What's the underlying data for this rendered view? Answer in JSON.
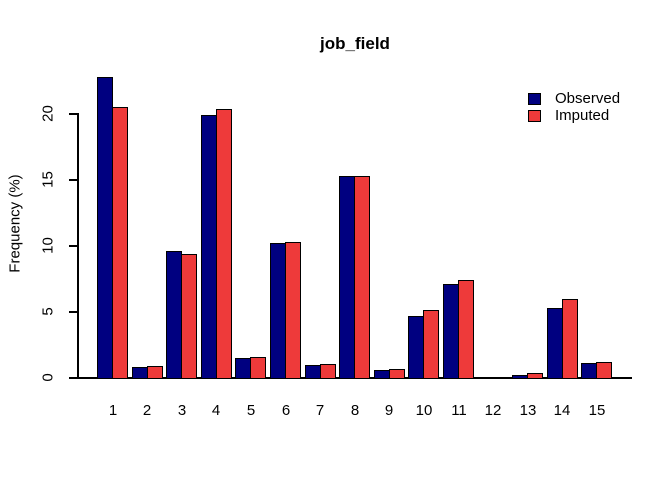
{
  "title": "job_field",
  "y_axis": {
    "label": "Frequency (%)",
    "tick_labels": [
      "0",
      "5",
      "10",
      "15",
      "20"
    ]
  },
  "x_axis": {
    "tick_labels": [
      "1",
      "2",
      "3",
      "4",
      "5",
      "6",
      "7",
      "8",
      "9",
      "10",
      "11",
      "12",
      "13",
      "14",
      "15"
    ]
  },
  "legend": {
    "items": [
      {
        "label": "Observed",
        "color": "#000080"
      },
      {
        "label": "Imputed",
        "color": "#EE3A3A"
      }
    ],
    "position": "top-right"
  },
  "chart_data": {
    "type": "bar",
    "title": "job_field",
    "xlabel": "",
    "ylabel": "Frequency (%)",
    "ylim": [
      0,
      20
    ],
    "yticks": [
      0,
      5,
      10,
      15,
      20
    ],
    "grid": false,
    "legend_position": "top-right",
    "categories": [
      "1",
      "2",
      "3",
      "4",
      "5",
      "6",
      "7",
      "8",
      "9",
      "10",
      "11",
      "12",
      "13",
      "14",
      "15"
    ],
    "series": [
      {
        "name": "Observed",
        "color": "#000080",
        "values": [
          22.8,
          0.8,
          9.6,
          19.9,
          1.5,
          10.2,
          1.0,
          15.3,
          0.6,
          4.7,
          7.1,
          0.05,
          0.25,
          5.3,
          1.1
        ]
      },
      {
        "name": "Imputed",
        "color": "#EE3A3A",
        "values": [
          20.5,
          0.9,
          9.4,
          20.4,
          1.6,
          10.3,
          1.05,
          15.3,
          0.65,
          5.15,
          7.45,
          0.08,
          0.35,
          6.0,
          1.2
        ]
      }
    ]
  }
}
